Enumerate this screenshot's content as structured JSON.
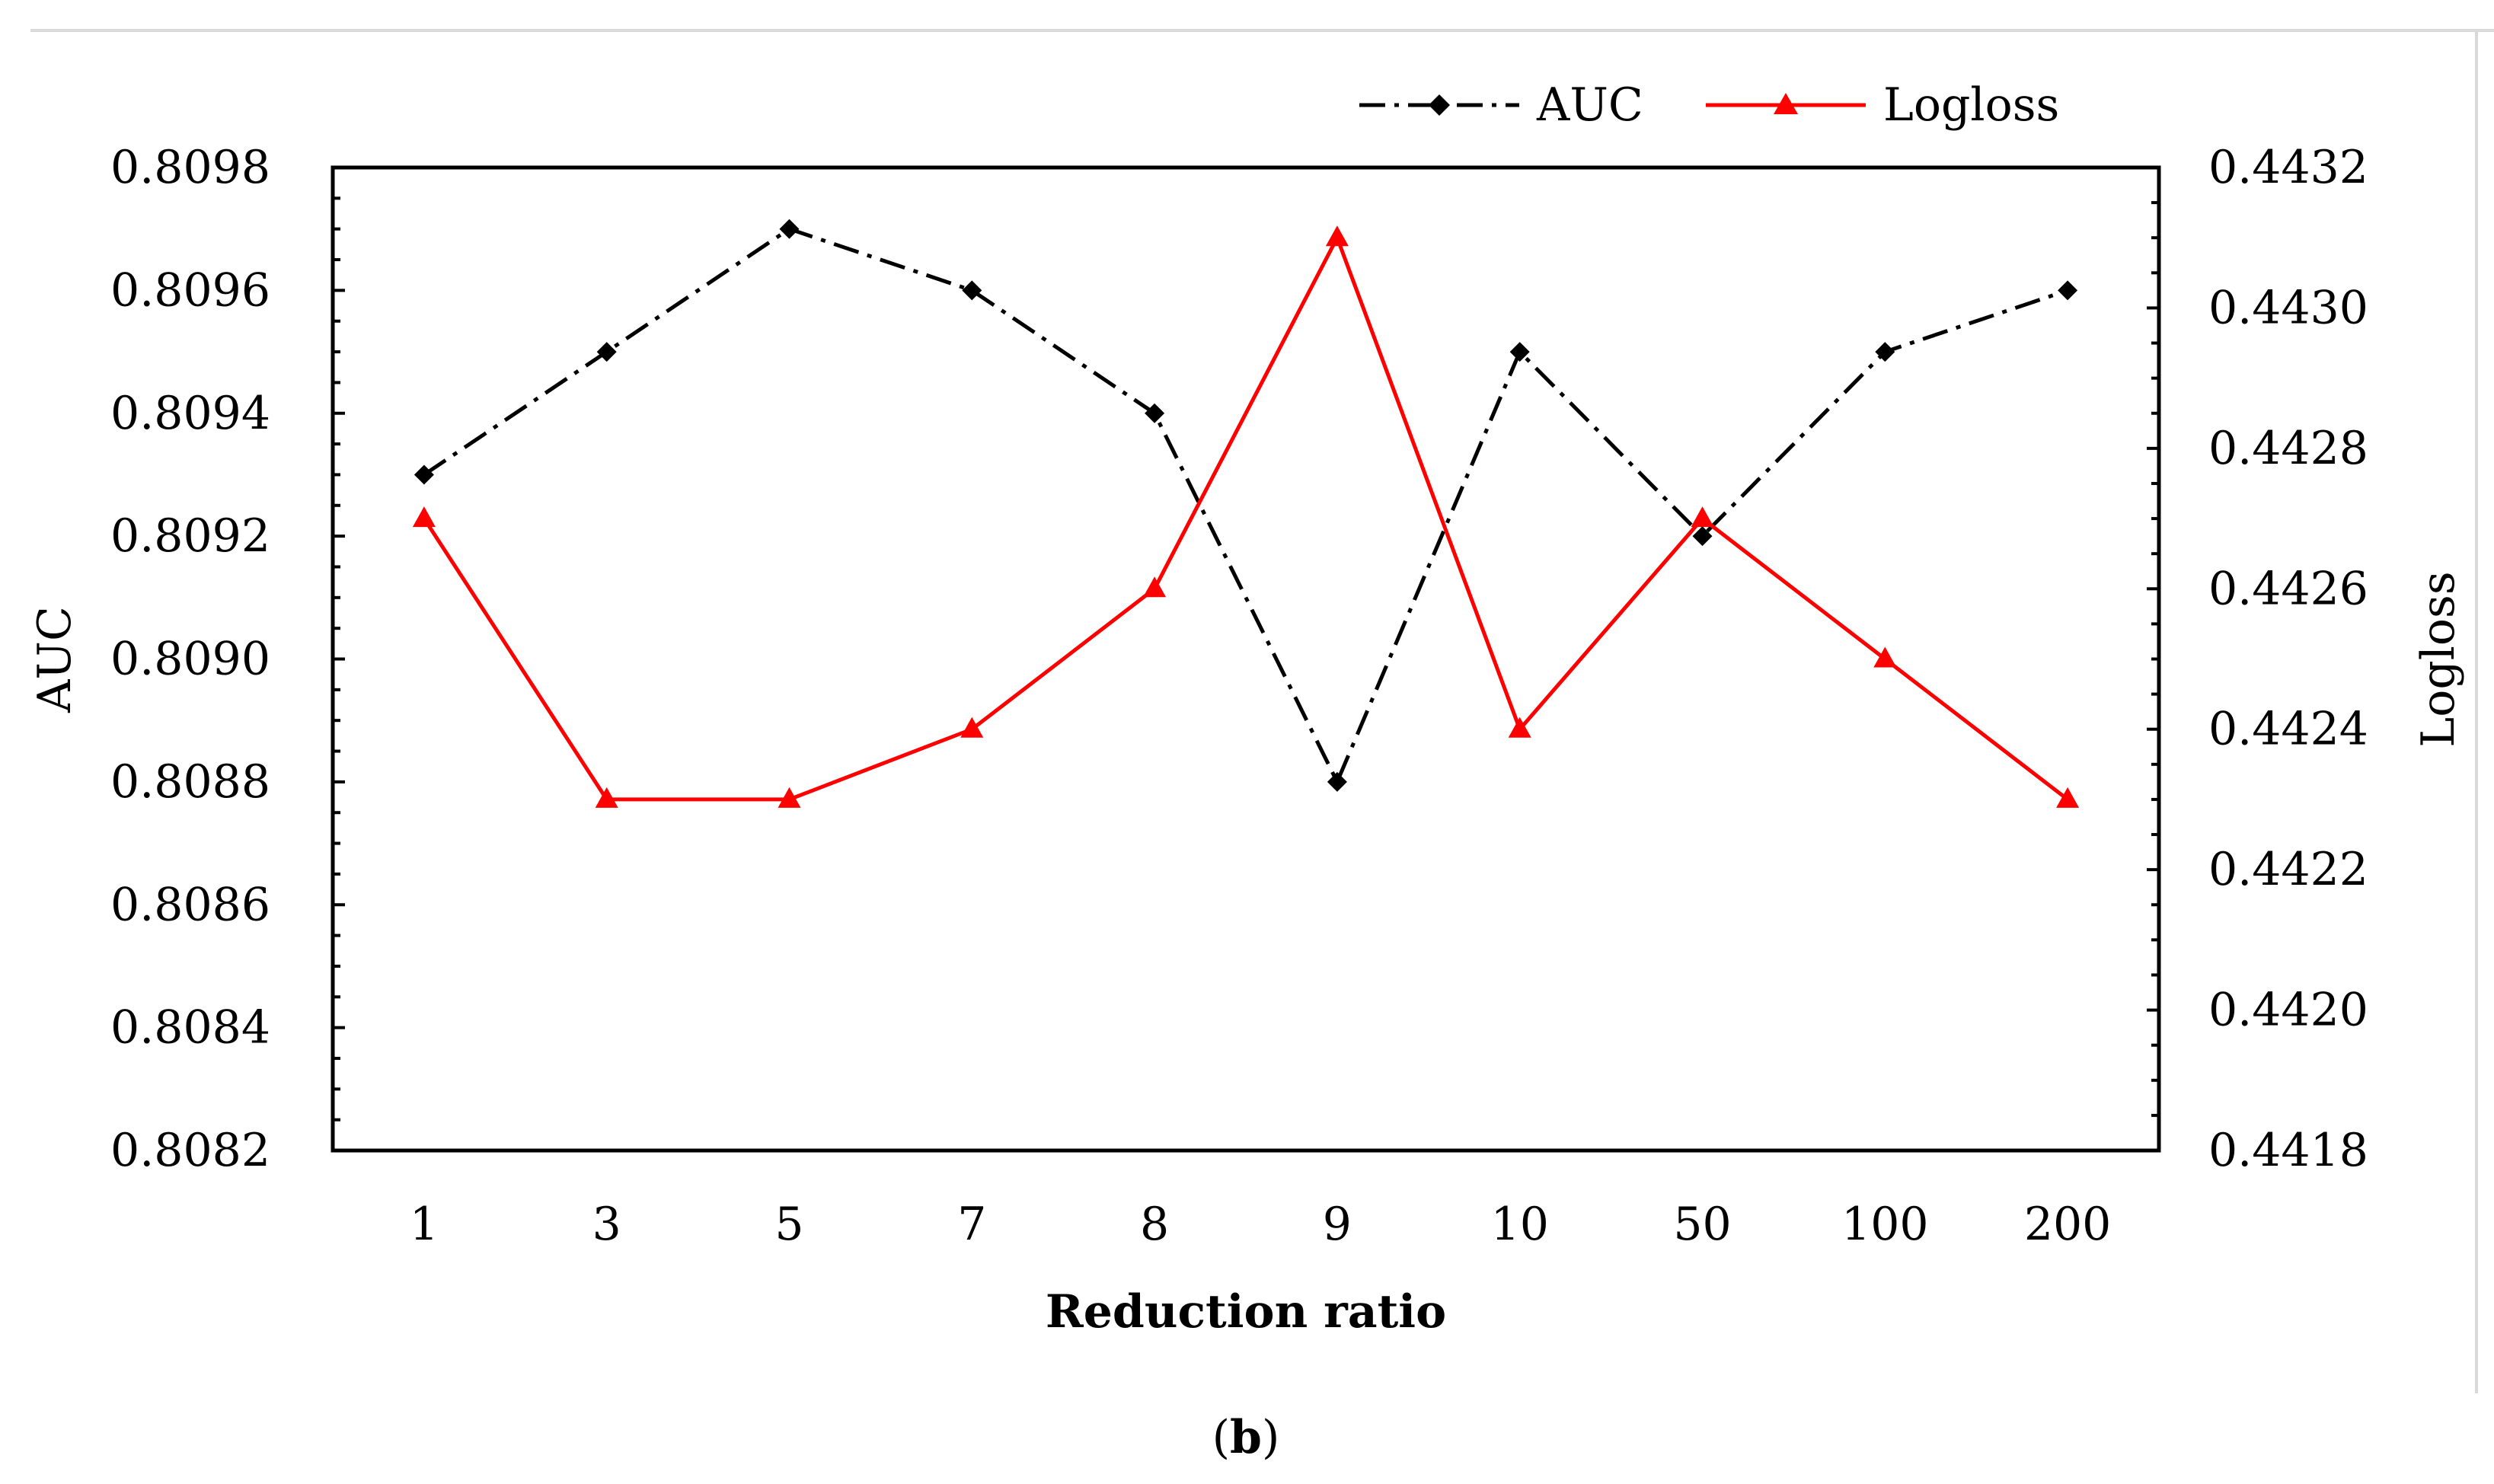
{
  "chart_data": {
    "type": "line",
    "categories": [
      "1",
      "3",
      "5",
      "7",
      "8",
      "9",
      "10",
      "50",
      "100",
      "200"
    ],
    "xlabel": "Reduction ratio",
    "ylabel": "AUC",
    "y2label": "Logloss",
    "caption_letter": "b",
    "caption_open": "(",
    "caption_close": ")",
    "ylim": [
      0.8082,
      0.8098
    ],
    "y2lim": [
      0.4418,
      0.4432
    ],
    "yticks": [
      "0.8082",
      "0.8084",
      "0.8086",
      "0.8088",
      "0.8090",
      "0.8092",
      "0.8094",
      "0.8096",
      "0.8098"
    ],
    "y2ticks": [
      "0.4418",
      "0.4420",
      "0.4422",
      "0.4424",
      "0.4426",
      "0.4428",
      "0.4430",
      "0.4432"
    ],
    "legend_position": "top-right",
    "series": [
      {
        "name": "AUC",
        "axis": "left",
        "color": "#000000",
        "marker": "diamond",
        "line_style": "dash-dot",
        "values": [
          0.8093,
          0.8095,
          0.8097,
          0.8096,
          0.8094,
          0.8088,
          0.8095,
          0.8092,
          0.8095,
          0.8096
        ]
      },
      {
        "name": "Logloss",
        "axis": "right",
        "color": "#ff0000",
        "marker": "triangle",
        "line_style": "solid",
        "values": [
          0.4427,
          0.4423,
          0.4423,
          0.4424,
          0.4426,
          0.4431,
          0.4424,
          0.4427,
          0.4425,
          0.4423
        ]
      }
    ]
  }
}
